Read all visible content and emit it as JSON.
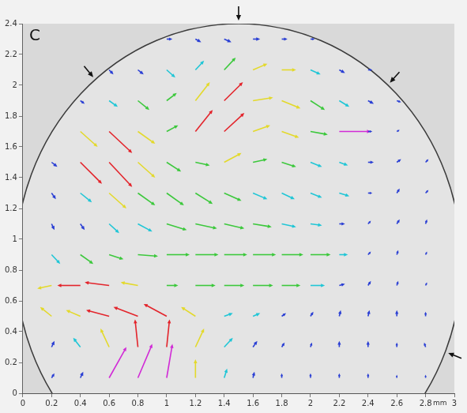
{
  "chart_data": {
    "type": "quiver",
    "panel_letter": "C",
    "x_label": "mm",
    "xlim": [
      0,
      3
    ],
    "ylim": [
      0,
      2.4
    ],
    "xticks": [
      0,
      0.2,
      0.4,
      0.6,
      0.8,
      1,
      1.2,
      1.4,
      1.6,
      1.8,
      2,
      2.2,
      2.4,
      2.6,
      2.8,
      3
    ],
    "yticks": [
      0,
      0.2,
      0.4,
      0.6,
      0.8,
      1,
      1.2,
      1.4,
      1.6,
      1.8,
      2,
      2.2,
      2.4
    ],
    "grid": false,
    "boundary": {
      "cx": 1.5,
      "cy": 0.85,
      "r": 1.55
    },
    "vectors": [
      {
        "x": 1.0,
        "y": 2.3,
        "u": 0.04,
        "v": 0,
        "color": "#2a3fd4"
      },
      {
        "x": 1.2,
        "y": 2.3,
        "u": 0.04,
        "v": -0.02,
        "color": "#2a3fd4"
      },
      {
        "x": 1.4,
        "y": 2.3,
        "u": 0.05,
        "v": -0.02,
        "color": "#2a3fd4"
      },
      {
        "x": 1.6,
        "y": 2.3,
        "u": 0.05,
        "v": 0,
        "color": "#2a3fd4"
      },
      {
        "x": 1.8,
        "y": 2.3,
        "u": 0.04,
        "v": 0,
        "color": "#2a3fd4"
      },
      {
        "x": 2.0,
        "y": 2.3,
        "u": 0.03,
        "v": 0,
        "color": "#2a3fd4"
      },
      {
        "x": 0.6,
        "y": 2.1,
        "u": 0.03,
        "v": -0.03,
        "color": "#2a3fd4"
      },
      {
        "x": 0.8,
        "y": 2.1,
        "u": 0.04,
        "v": -0.03,
        "color": "#2a3fd4"
      },
      {
        "x": 1.0,
        "y": 2.1,
        "u": 0.06,
        "v": -0.05,
        "color": "#20c6d6"
      },
      {
        "x": 1.2,
        "y": 2.1,
        "u": 0.06,
        "v": 0.06,
        "color": "#20c6d6"
      },
      {
        "x": 1.4,
        "y": 2.1,
        "u": 0.08,
        "v": 0.08,
        "color": "#3cc83c"
      },
      {
        "x": 1.6,
        "y": 2.1,
        "u": 0.1,
        "v": 0.04,
        "color": "#e3d92a"
      },
      {
        "x": 1.8,
        "y": 2.1,
        "u": 0.1,
        "v": 0,
        "color": "#e3d92a"
      },
      {
        "x": 2.0,
        "y": 2.1,
        "u": 0.07,
        "v": -0.03,
        "color": "#20c6d6"
      },
      {
        "x": 2.2,
        "y": 2.1,
        "u": 0.04,
        "v": -0.02,
        "color": "#2a3fd4"
      },
      {
        "x": 2.4,
        "y": 2.1,
        "u": 0.03,
        "v": 0,
        "color": "#2a3fd4"
      },
      {
        "x": 0.4,
        "y": 1.9,
        "u": 0.03,
        "v": -0.02,
        "color": "#2a3fd4"
      },
      {
        "x": 0.6,
        "y": 1.9,
        "u": 0.06,
        "v": -0.04,
        "color": "#20c6d6"
      },
      {
        "x": 0.8,
        "y": 1.9,
        "u": 0.08,
        "v": -0.06,
        "color": "#3cc83c"
      },
      {
        "x": 1.0,
        "y": 1.9,
        "u": 0.07,
        "v": 0.05,
        "color": "#3cc83c"
      },
      {
        "x": 1.2,
        "y": 1.9,
        "u": 0.1,
        "v": 0.12,
        "color": "#e3d92a"
      },
      {
        "x": 1.4,
        "y": 1.9,
        "u": 0.13,
        "v": 0.12,
        "color": "#e3242b"
      },
      {
        "x": 1.6,
        "y": 1.9,
        "u": 0.14,
        "v": 0.02,
        "color": "#e3d92a"
      },
      {
        "x": 1.8,
        "y": 1.9,
        "u": 0.13,
        "v": -0.05,
        "color": "#e3d92a"
      },
      {
        "x": 2.0,
        "y": 1.9,
        "u": 0.1,
        "v": -0.06,
        "color": "#3cc83c"
      },
      {
        "x": 2.2,
        "y": 1.9,
        "u": 0.07,
        "v": -0.04,
        "color": "#20c6d6"
      },
      {
        "x": 2.4,
        "y": 1.9,
        "u": 0.04,
        "v": -0.02,
        "color": "#2a3fd4"
      },
      {
        "x": 2.6,
        "y": 1.9,
        "u": 0.03,
        "v": -0.01,
        "color": "#2a3fd4"
      },
      {
        "x": 0.4,
        "y": 1.7,
        "u": 0.12,
        "v": -0.1,
        "color": "#e3d92a"
      },
      {
        "x": 0.6,
        "y": 1.7,
        "u": 0.16,
        "v": -0.14,
        "color": "#e3242b"
      },
      {
        "x": 0.8,
        "y": 1.7,
        "u": 0.12,
        "v": -0.08,
        "color": "#e3d92a"
      },
      {
        "x": 1.0,
        "y": 1.7,
        "u": 0.08,
        "v": 0.04,
        "color": "#3cc83c"
      },
      {
        "x": 1.2,
        "y": 1.7,
        "u": 0.12,
        "v": 0.14,
        "color": "#e3242b"
      },
      {
        "x": 1.4,
        "y": 1.7,
        "u": 0.14,
        "v": 0.12,
        "color": "#e3242b"
      },
      {
        "x": 1.6,
        "y": 1.7,
        "u": 0.12,
        "v": 0.04,
        "color": "#e3d92a"
      },
      {
        "x": 1.8,
        "y": 1.7,
        "u": 0.12,
        "v": -0.04,
        "color": "#e3d92a"
      },
      {
        "x": 2.0,
        "y": 1.7,
        "u": 0.12,
        "v": -0.02,
        "color": "#3cc83c"
      },
      {
        "x": 2.2,
        "y": 1.7,
        "u": 0.22,
        "v": 0,
        "color": "#d12ad6"
      },
      {
        "x": 2.4,
        "y": 1.7,
        "u": 0.03,
        "v": 0,
        "color": "#2a3fd4"
      },
      {
        "x": 2.6,
        "y": 1.7,
        "u": 0.02,
        "v": 0.01,
        "color": "#2a3fd4"
      },
      {
        "x": 0.2,
        "y": 1.5,
        "u": 0.04,
        "v": -0.03,
        "color": "#2a3fd4"
      },
      {
        "x": 0.4,
        "y": 1.5,
        "u": 0.15,
        "v": -0.14,
        "color": "#e3242b"
      },
      {
        "x": 0.6,
        "y": 1.5,
        "u": 0.16,
        "v": -0.16,
        "color": "#e3242b"
      },
      {
        "x": 0.8,
        "y": 1.5,
        "u": 0.12,
        "v": -0.1,
        "color": "#e3d92a"
      },
      {
        "x": 1.0,
        "y": 1.5,
        "u": 0.1,
        "v": -0.06,
        "color": "#3cc83c"
      },
      {
        "x": 1.2,
        "y": 1.5,
        "u": 0.1,
        "v": -0.02,
        "color": "#3cc83c"
      },
      {
        "x": 1.4,
        "y": 1.5,
        "u": 0.12,
        "v": 0.06,
        "color": "#e3d92a"
      },
      {
        "x": 1.6,
        "y": 1.5,
        "u": 0.1,
        "v": 0.02,
        "color": "#3cc83c"
      },
      {
        "x": 1.8,
        "y": 1.5,
        "u": 0.1,
        "v": -0.03,
        "color": "#3cc83c"
      },
      {
        "x": 2.0,
        "y": 1.5,
        "u": 0.08,
        "v": -0.03,
        "color": "#20c6d6"
      },
      {
        "x": 2.2,
        "y": 1.5,
        "u": 0.06,
        "v": -0.02,
        "color": "#20c6d6"
      },
      {
        "x": 2.4,
        "y": 1.5,
        "u": 0.04,
        "v": 0,
        "color": "#2a3fd4"
      },
      {
        "x": 2.6,
        "y": 1.5,
        "u": 0.03,
        "v": 0.02,
        "color": "#2a3fd4"
      },
      {
        "x": 2.8,
        "y": 1.5,
        "u": 0.02,
        "v": 0.02,
        "color": "#2a3fd4"
      },
      {
        "x": 0.2,
        "y": 1.3,
        "u": 0.03,
        "v": -0.04,
        "color": "#2a3fd4"
      },
      {
        "x": 0.4,
        "y": 1.3,
        "u": 0.08,
        "v": -0.06,
        "color": "#20c6d6"
      },
      {
        "x": 0.6,
        "y": 1.3,
        "u": 0.12,
        "v": -0.1,
        "color": "#e3d92a"
      },
      {
        "x": 0.8,
        "y": 1.3,
        "u": 0.12,
        "v": -0.08,
        "color": "#3cc83c"
      },
      {
        "x": 1.0,
        "y": 1.3,
        "u": 0.12,
        "v": -0.08,
        "color": "#3cc83c"
      },
      {
        "x": 1.2,
        "y": 1.3,
        "u": 0.12,
        "v": -0.07,
        "color": "#3cc83c"
      },
      {
        "x": 1.4,
        "y": 1.3,
        "u": 0.12,
        "v": -0.05,
        "color": "#3cc83c"
      },
      {
        "x": 1.6,
        "y": 1.3,
        "u": 0.1,
        "v": -0.04,
        "color": "#20c6d6"
      },
      {
        "x": 1.8,
        "y": 1.3,
        "u": 0.09,
        "v": -0.04,
        "color": "#20c6d6"
      },
      {
        "x": 2.0,
        "y": 1.3,
        "u": 0.08,
        "v": -0.03,
        "color": "#20c6d6"
      },
      {
        "x": 2.2,
        "y": 1.3,
        "u": 0.07,
        "v": -0.02,
        "color": "#20c6d6"
      },
      {
        "x": 2.4,
        "y": 1.3,
        "u": 0.03,
        "v": 0,
        "color": "#2a3fd4"
      },
      {
        "x": 2.6,
        "y": 1.3,
        "u": 0.02,
        "v": 0.03,
        "color": "#2a3fd4"
      },
      {
        "x": 2.8,
        "y": 1.3,
        "u": 0.02,
        "v": 0.02,
        "color": "#2a3fd4"
      },
      {
        "x": 0.2,
        "y": 1.1,
        "u": 0.02,
        "v": -0.04,
        "color": "#2a3fd4"
      },
      {
        "x": 0.4,
        "y": 1.1,
        "u": 0.03,
        "v": -0.04,
        "color": "#2a3fd4"
      },
      {
        "x": 0.6,
        "y": 1.1,
        "u": 0.07,
        "v": -0.06,
        "color": "#20c6d6"
      },
      {
        "x": 0.8,
        "y": 1.1,
        "u": 0.1,
        "v": -0.05,
        "color": "#20c6d6"
      },
      {
        "x": 1.0,
        "y": 1.1,
        "u": 0.14,
        "v": -0.04,
        "color": "#3cc83c"
      },
      {
        "x": 1.2,
        "y": 1.1,
        "u": 0.15,
        "v": -0.03,
        "color": "#3cc83c"
      },
      {
        "x": 1.4,
        "y": 1.1,
        "u": 0.14,
        "v": -0.03,
        "color": "#3cc83c"
      },
      {
        "x": 1.6,
        "y": 1.1,
        "u": 0.13,
        "v": -0.02,
        "color": "#3cc83c"
      },
      {
        "x": 1.8,
        "y": 1.1,
        "u": 0.1,
        "v": -0.02,
        "color": "#20c6d6"
      },
      {
        "x": 2.0,
        "y": 1.1,
        "u": 0.08,
        "v": -0.01,
        "color": "#20c6d6"
      },
      {
        "x": 2.2,
        "y": 1.1,
        "u": 0.04,
        "v": 0,
        "color": "#2a3fd4"
      },
      {
        "x": 2.4,
        "y": 1.1,
        "u": 0.02,
        "v": 0.02,
        "color": "#2a3fd4"
      },
      {
        "x": 2.6,
        "y": 1.1,
        "u": 0.02,
        "v": 0.03,
        "color": "#2a3fd4"
      },
      {
        "x": 2.8,
        "y": 1.1,
        "u": 0.01,
        "v": 0.03,
        "color": "#2a3fd4"
      },
      {
        "x": 0.2,
        "y": 0.9,
        "u": 0.06,
        "v": -0.06,
        "color": "#20c6d6"
      },
      {
        "x": 0.4,
        "y": 0.9,
        "u": 0.09,
        "v": -0.06,
        "color": "#3cc83c"
      },
      {
        "x": 0.6,
        "y": 0.9,
        "u": 0.1,
        "v": -0.03,
        "color": "#3cc83c"
      },
      {
        "x": 0.8,
        "y": 0.9,
        "u": 0.14,
        "v": -0.01,
        "color": "#3cc83c"
      },
      {
        "x": 1.0,
        "y": 0.9,
        "u": 0.16,
        "v": 0,
        "color": "#3cc83c"
      },
      {
        "x": 1.2,
        "y": 0.9,
        "u": 0.16,
        "v": 0,
        "color": "#3cc83c"
      },
      {
        "x": 1.4,
        "y": 0.9,
        "u": 0.16,
        "v": 0,
        "color": "#3cc83c"
      },
      {
        "x": 1.6,
        "y": 0.9,
        "u": 0.16,
        "v": 0,
        "color": "#3cc83c"
      },
      {
        "x": 1.8,
        "y": 0.9,
        "u": 0.15,
        "v": 0,
        "color": "#3cc83c"
      },
      {
        "x": 2.0,
        "y": 0.9,
        "u": 0.14,
        "v": 0,
        "color": "#3cc83c"
      },
      {
        "x": 2.2,
        "y": 0.9,
        "u": 0.06,
        "v": 0,
        "color": "#20c6d6"
      },
      {
        "x": 2.4,
        "y": 0.9,
        "u": 0.02,
        "v": 0.02,
        "color": "#2a3fd4"
      },
      {
        "x": 2.6,
        "y": 0.9,
        "u": 0.01,
        "v": 0.03,
        "color": "#2a3fd4"
      },
      {
        "x": 2.8,
        "y": 0.9,
        "u": 0.01,
        "v": 0.02,
        "color": "#2a3fd4"
      },
      {
        "x": 0.2,
        "y": 0.7,
        "u": -0.1,
        "v": -0.02,
        "color": "#e3d92a"
      },
      {
        "x": 0.4,
        "y": 0.7,
        "u": -0.16,
        "v": 0,
        "color": "#e3242b"
      },
      {
        "x": 0.6,
        "y": 0.7,
        "u": -0.17,
        "v": 0.02,
        "color": "#e3242b"
      },
      {
        "x": 0.8,
        "y": 0.7,
        "u": -0.12,
        "v": 0.02,
        "color": "#e3d92a"
      },
      {
        "x": 1.0,
        "y": 0.7,
        "u": 0.08,
        "v": 0,
        "color": "#3cc83c"
      },
      {
        "x": 1.2,
        "y": 0.7,
        "u": 0.14,
        "v": 0,
        "color": "#3cc83c"
      },
      {
        "x": 1.4,
        "y": 0.7,
        "u": 0.14,
        "v": 0,
        "color": "#3cc83c"
      },
      {
        "x": 1.6,
        "y": 0.7,
        "u": 0.14,
        "v": 0,
        "color": "#3cc83c"
      },
      {
        "x": 1.8,
        "y": 0.7,
        "u": 0.13,
        "v": 0,
        "color": "#3cc83c"
      },
      {
        "x": 2.0,
        "y": 0.7,
        "u": 0.1,
        "v": 0,
        "color": "#20c6d6"
      },
      {
        "x": 2.2,
        "y": 0.7,
        "u": 0.04,
        "v": 0.01,
        "color": "#2a3fd4"
      },
      {
        "x": 2.4,
        "y": 0.7,
        "u": 0.02,
        "v": 0.03,
        "color": "#2a3fd4"
      },
      {
        "x": 2.6,
        "y": 0.7,
        "u": 0.01,
        "v": 0.03,
        "color": "#2a3fd4"
      },
      {
        "x": 2.8,
        "y": 0.7,
        "u": 0.01,
        "v": 0.02,
        "color": "#2a3fd4"
      },
      {
        "x": 0.2,
        "y": 0.5,
        "u": -0.08,
        "v": 0.06,
        "color": "#e3d92a"
      },
      {
        "x": 0.4,
        "y": 0.5,
        "u": -0.1,
        "v": 0.04,
        "color": "#e3d92a"
      },
      {
        "x": 0.6,
        "y": 0.5,
        "u": -0.16,
        "v": 0.04,
        "color": "#e3242b"
      },
      {
        "x": 0.8,
        "y": 0.5,
        "u": -0.17,
        "v": 0.06,
        "color": "#e3242b"
      },
      {
        "x": 1.0,
        "y": 0.5,
        "u": -0.16,
        "v": 0.08,
        "color": "#e3242b"
      },
      {
        "x": 1.2,
        "y": 0.5,
        "u": -0.1,
        "v": 0.06,
        "color": "#e3d92a"
      },
      {
        "x": 1.4,
        "y": 0.5,
        "u": 0.06,
        "v": 0.02,
        "color": "#20c6d6"
      },
      {
        "x": 1.6,
        "y": 0.5,
        "u": 0.05,
        "v": 0.02,
        "color": "#20c6d6"
      },
      {
        "x": 1.8,
        "y": 0.5,
        "u": 0.03,
        "v": 0.02,
        "color": "#2a3fd4"
      },
      {
        "x": 2.0,
        "y": 0.5,
        "u": 0.02,
        "v": 0.03,
        "color": "#2a3fd4"
      },
      {
        "x": 2.2,
        "y": 0.5,
        "u": 0.01,
        "v": 0.04,
        "color": "#2a3fd4"
      },
      {
        "x": 2.4,
        "y": 0.5,
        "u": 0.01,
        "v": 0.04,
        "color": "#2a3fd4"
      },
      {
        "x": 2.6,
        "y": 0.5,
        "u": 0,
        "v": 0.04,
        "color": "#2a3fd4"
      },
      {
        "x": 2.8,
        "y": 0.5,
        "u": 0,
        "v": 0.03,
        "color": "#2a3fd4"
      },
      {
        "x": 0.2,
        "y": 0.3,
        "u": 0.02,
        "v": 0.04,
        "color": "#2a3fd4"
      },
      {
        "x": 0.4,
        "y": 0.3,
        "u": -0.05,
        "v": 0.06,
        "color": "#20c6d6"
      },
      {
        "x": 0.6,
        "y": 0.3,
        "u": -0.06,
        "v": 0.12,
        "color": "#e3d92a"
      },
      {
        "x": 0.8,
        "y": 0.3,
        "u": -0.02,
        "v": 0.18,
        "color": "#e3242b"
      },
      {
        "x": 1.0,
        "y": 0.3,
        "u": 0.02,
        "v": 0.18,
        "color": "#e3242b"
      },
      {
        "x": 1.2,
        "y": 0.3,
        "u": 0.06,
        "v": 0.12,
        "color": "#e3d92a"
      },
      {
        "x": 1.4,
        "y": 0.3,
        "u": 0.06,
        "v": 0.06,
        "color": "#20c6d6"
      },
      {
        "x": 1.6,
        "y": 0.3,
        "u": 0.03,
        "v": 0.04,
        "color": "#2a3fd4"
      },
      {
        "x": 1.8,
        "y": 0.3,
        "u": 0.02,
        "v": 0.03,
        "color": "#2a3fd4"
      },
      {
        "x": 2.0,
        "y": 0.3,
        "u": 0.01,
        "v": 0.03,
        "color": "#2a3fd4"
      },
      {
        "x": 2.2,
        "y": 0.3,
        "u": 0,
        "v": 0.04,
        "color": "#2a3fd4"
      },
      {
        "x": 2.4,
        "y": 0.3,
        "u": 0,
        "v": 0.04,
        "color": "#2a3fd4"
      },
      {
        "x": 2.6,
        "y": 0.3,
        "u": 0,
        "v": 0.03,
        "color": "#2a3fd4"
      },
      {
        "x": 2.8,
        "y": 0.3,
        "u": -0.01,
        "v": 0.03,
        "color": "#2a3fd4"
      },
      {
        "x": 0.2,
        "y": 0.1,
        "u": 0.02,
        "v": 0.03,
        "color": "#2a3fd4"
      },
      {
        "x": 0.4,
        "y": 0.1,
        "u": 0.02,
        "v": 0.04,
        "color": "#2a3fd4"
      },
      {
        "x": 0.6,
        "y": 0.1,
        "u": 0.12,
        "v": 0.2,
        "color": "#d12ad6"
      },
      {
        "x": 0.8,
        "y": 0.1,
        "u": 0.1,
        "v": 0.22,
        "color": "#d12ad6"
      },
      {
        "x": 1.0,
        "y": 0.1,
        "u": 0.04,
        "v": 0.22,
        "color": "#d12ad6"
      },
      {
        "x": 1.2,
        "y": 0.1,
        "u": 0,
        "v": 0.12,
        "color": "#e3d92a"
      },
      {
        "x": 1.4,
        "y": 0.1,
        "u": 0.02,
        "v": 0.06,
        "color": "#20c6d6"
      },
      {
        "x": 1.6,
        "y": 0.1,
        "u": 0.01,
        "v": 0.04,
        "color": "#2a3fd4"
      },
      {
        "x": 1.8,
        "y": 0.1,
        "u": 0,
        "v": 0.03,
        "color": "#2a3fd4"
      },
      {
        "x": 2.0,
        "y": 0.1,
        "u": 0,
        "v": 0.03,
        "color": "#2a3fd4"
      },
      {
        "x": 2.2,
        "y": 0.1,
        "u": 0,
        "v": 0.03,
        "color": "#2a3fd4"
      },
      {
        "x": 2.4,
        "y": 0.1,
        "u": 0,
        "v": 0.03,
        "color": "#2a3fd4"
      },
      {
        "x": 2.6,
        "y": 0.1,
        "u": 0,
        "v": 0.02,
        "color": "#2a3fd4"
      },
      {
        "x": 2.8,
        "y": 0.1,
        "u": 0,
        "v": 0.02,
        "color": "#2a3fd4"
      }
    ]
  }
}
